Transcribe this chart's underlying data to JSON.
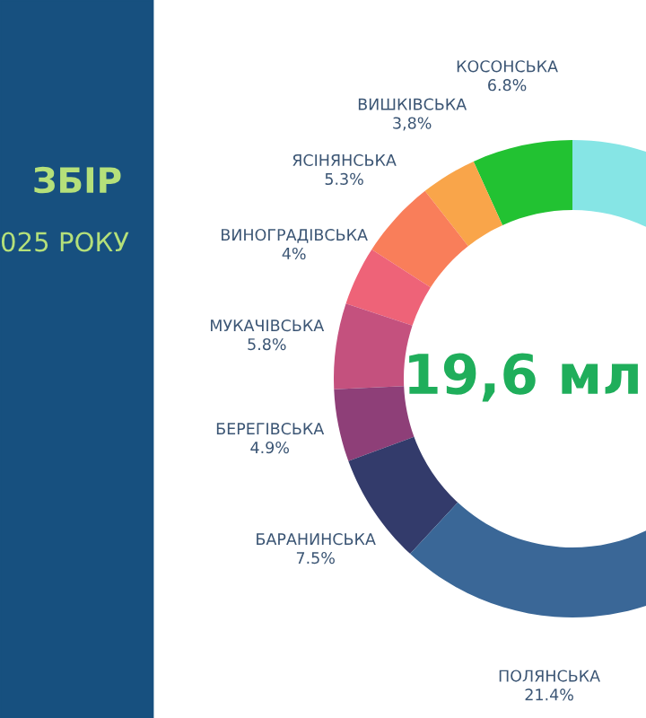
{
  "chart_data": {
    "type": "donut",
    "title": "ЗБІР",
    "subtitle": "025 РОКУ",
    "annotations": [
      "19,6 мл"
    ],
    "categories": [
      "КОСОНСЬКА",
      "ВИШКІВСЬКА",
      "ЯСІНЯНСЬКА",
      "ВИНОГРАДІВСЬКА",
      "МУКАЧІВСЬКА",
      "БЕРЕГІВСЬКА",
      "БАРАНИНСЬКА",
      "ПОЛЯНСЬКА",
      null
    ],
    "values": [
      6.8,
      3.8,
      5.3,
      4,
      5.8,
      4.9,
      7.5,
      21.4,
      40.5
    ],
    "value_labels": [
      "6.8%",
      "3,8%",
      "5.3%",
      "4%",
      "5.8%",
      "4.9%",
      "7.5%",
      "21.4%",
      null
    ],
    "colors": [
      "#22c232",
      "#f9a54a",
      "#f97e5a",
      "#ee6378",
      "#c4517e",
      "#8e3f78",
      "#333b6b",
      "#3a6797",
      "#86e5e5"
    ]
  }
}
